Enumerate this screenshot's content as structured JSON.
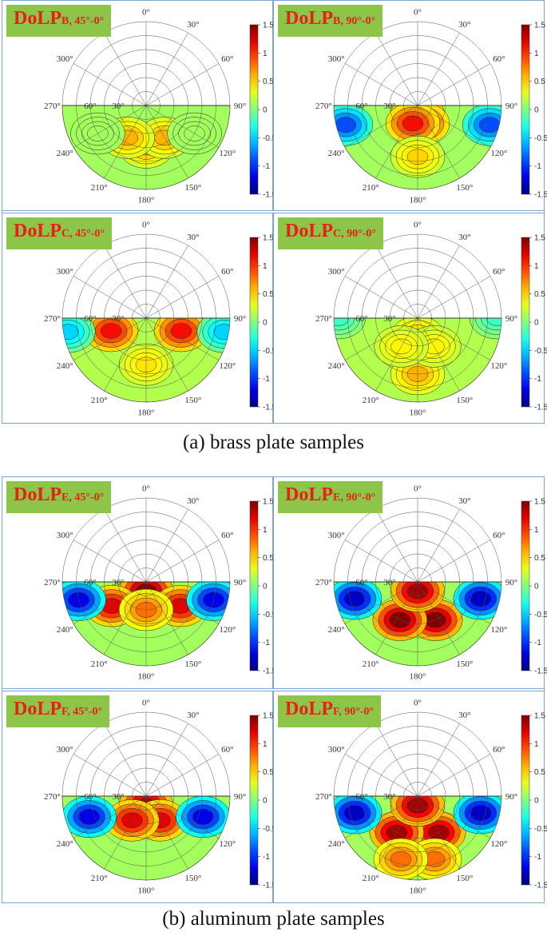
{
  "captions": {
    "a": "(a) brass plate samples",
    "b": "(b) aluminum plate samples"
  },
  "colors": {
    "badge_bg": "#8dc549",
    "badge_text": "#e8201a",
    "frame": "#7aa7d1"
  },
  "polar_axis": {
    "angle_labels": [
      "0°",
      "30°",
      "60°",
      "90°",
      "120°",
      "150°",
      "180°",
      "210°",
      "240°",
      "270°",
      "300°"
    ],
    "radial_labels": [
      "60°",
      "30°"
    ]
  },
  "colorbar": {
    "colormap": "jet",
    "range": [
      -1.5,
      1.5
    ],
    "ticks": [
      "1.5",
      "1",
      "0.5",
      "0",
      "-0.5",
      "-1",
      "-1.5"
    ]
  },
  "panels": [
    {
      "title_main": "DoLP",
      "title_sub": "B, 45°-0°"
    },
    {
      "title_main": "DoLP",
      "title_sub": "B, 90°-0°"
    },
    {
      "title_main": "DoLP",
      "title_sub": "C, 45°-0°"
    },
    {
      "title_main": "DoLP",
      "title_sub": "C, 90°-0°"
    },
    {
      "title_main": "DoLP",
      "title_sub": "E, 45°-0°"
    },
    {
      "title_main": "DoLP",
      "title_sub": "E, 90°-0°"
    },
    {
      "title_main": "DoLP",
      "title_sub": "F, 45°-0°"
    },
    {
      "title_main": "DoLP",
      "title_sub": "F, 90°-0°"
    }
  ],
  "chart_data": [
    {
      "type": "heatmap",
      "projection": "polar",
      "sample": "B",
      "pair": "45°-0°",
      "zlim": [
        -1.5,
        1.5
      ],
      "pattern": {
        "background": 0.1,
        "features": [
          {
            "azimuth": 180,
            "zenith": 45,
            "value": 0.6
          },
          {
            "azimuth": 150,
            "zenith": 40,
            "value": 0.6
          },
          {
            "azimuth": 210,
            "zenith": 40,
            "value": 0.6
          },
          {
            "azimuth": 120,
            "zenith": 60,
            "value": 0.1
          },
          {
            "azimuth": 240,
            "zenith": 60,
            "value": 0.1
          }
        ]
      }
    },
    {
      "type": "heatmap",
      "projection": "polar",
      "sample": "B",
      "pair": "90°-0°",
      "zlim": [
        -1.5,
        1.5
      ],
      "pattern": {
        "background": 0.1,
        "features": [
          {
            "azimuth": 180,
            "zenith": 10,
            "value": 1.4
          },
          {
            "azimuth": 165,
            "zenith": 20,
            "value": 1.1
          },
          {
            "azimuth": 195,
            "zenith": 20,
            "value": 1.1
          },
          {
            "azimuth": 180,
            "zenith": 55,
            "value": 0.5
          },
          {
            "azimuth": 105,
            "zenith": 80,
            "value": -0.9
          },
          {
            "azimuth": 255,
            "zenith": 80,
            "value": -0.9
          }
        ]
      }
    },
    {
      "type": "heatmap",
      "projection": "polar",
      "sample": "C",
      "pair": "45°-0°",
      "zlim": [
        -1.5,
        1.5
      ],
      "pattern": {
        "background": 0.15,
        "features": [
          {
            "azimuth": 250,
            "zenith": 40,
            "value": 1.1
          },
          {
            "azimuth": 110,
            "zenith": 40,
            "value": 1.1
          },
          {
            "azimuth": 180,
            "zenith": 50,
            "value": 0.45
          },
          {
            "azimuth": 100,
            "zenith": 85,
            "value": -0.5
          },
          {
            "azimuth": 260,
            "zenith": 85,
            "value": -0.5
          }
        ]
      }
    },
    {
      "type": "heatmap",
      "projection": "polar",
      "sample": "C",
      "pair": "90°-0°",
      "zlim": [
        -1.5,
        1.5
      ],
      "pattern": {
        "background": 0.15,
        "features": [
          {
            "azimuth": 180,
            "zenith": 60,
            "value": 0.6
          },
          {
            "azimuth": 180,
            "zenith": 20,
            "value": 0.55
          },
          {
            "azimuth": 150,
            "zenith": 35,
            "value": 0.4
          },
          {
            "azimuth": 210,
            "zenith": 35,
            "value": 0.4
          },
          {
            "azimuth": 90,
            "zenith": 85,
            "value": -0.2
          },
          {
            "azimuth": 270,
            "zenith": 85,
            "value": -0.2
          }
        ]
      }
    },
    {
      "type": "heatmap",
      "projection": "polar",
      "sample": "E",
      "pair": "45°-0°",
      "zlim": [
        -1.5,
        1.5
      ],
      "pattern": {
        "background": 0.1,
        "features": [
          {
            "azimuth": 180,
            "zenith": 10,
            "value": 1.5
          },
          {
            "azimuth": 235,
            "zenith": 45,
            "value": 1.2
          },
          {
            "azimuth": 125,
            "zenith": 45,
            "value": 1.2
          },
          {
            "azimuth": 180,
            "zenith": 30,
            "value": 0.8
          },
          {
            "azimuth": 105,
            "zenith": 75,
            "value": -1.2
          },
          {
            "azimuth": 255,
            "zenith": 75,
            "value": -1.2
          }
        ]
      }
    },
    {
      "type": "heatmap",
      "projection": "polar",
      "sample": "E",
      "pair": "90°-0°",
      "zlim": [
        -1.5,
        1.5
      ],
      "pattern": {
        "background": 0.1,
        "features": [
          {
            "azimuth": 155,
            "zenith": 45,
            "value": 1.5
          },
          {
            "azimuth": 205,
            "zenith": 45,
            "value": 1.5
          },
          {
            "azimuth": 180,
            "zenith": 10,
            "value": 1.4
          },
          {
            "azimuth": 105,
            "zenith": 70,
            "value": -1.3
          },
          {
            "azimuth": 255,
            "zenith": 70,
            "value": -1.3
          }
        ]
      }
    },
    {
      "type": "heatmap",
      "projection": "polar",
      "sample": "F",
      "pair": "45°-0°",
      "zlim": [
        -1.5,
        1.5
      ],
      "pattern": {
        "background": 0.1,
        "features": [
          {
            "azimuth": 180,
            "zenith": 10,
            "value": 1.4
          },
          {
            "azimuth": 150,
            "zenith": 30,
            "value": 1.2
          },
          {
            "azimuth": 210,
            "zenith": 30,
            "value": 1.2
          },
          {
            "azimuth": 110,
            "zenith": 65,
            "value": -1.2
          },
          {
            "azimuth": 250,
            "zenith": 65,
            "value": -1.2
          }
        ]
      }
    },
    {
      "type": "heatmap",
      "projection": "polar",
      "sample": "F",
      "pair": "90°-0°",
      "zlim": [
        -1.5,
        1.5
      ],
      "pattern": {
        "background": 0.1,
        "features": [
          {
            "azimuth": 150,
            "zenith": 45,
            "value": 1.4
          },
          {
            "azimuth": 210,
            "zenith": 45,
            "value": 1.4
          },
          {
            "azimuth": 180,
            "zenith": 10,
            "value": 1.4
          },
          {
            "azimuth": 165,
            "zenith": 70,
            "value": 0.8
          },
          {
            "azimuth": 195,
            "zenith": 70,
            "value": 0.8
          },
          {
            "azimuth": 105,
            "zenith": 70,
            "value": -1.3
          },
          {
            "azimuth": 255,
            "zenith": 70,
            "value": -1.3
          }
        ]
      }
    }
  ]
}
